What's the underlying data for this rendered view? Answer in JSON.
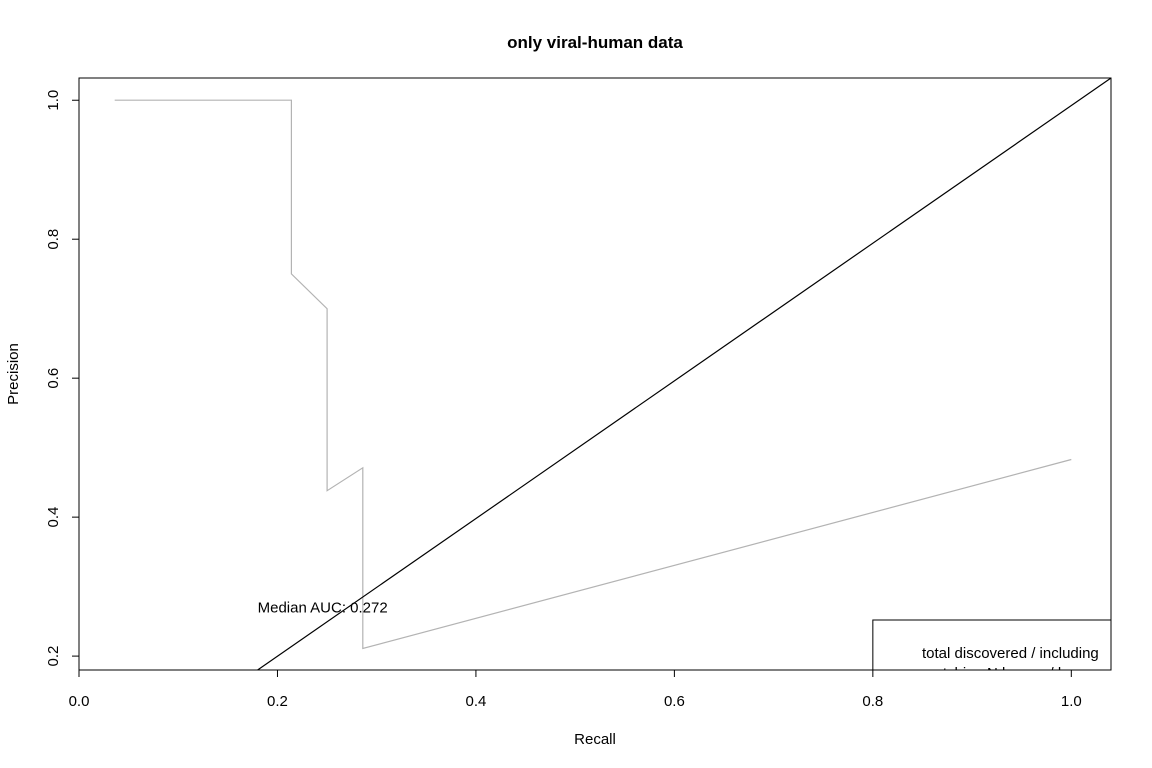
{
  "chart_data": {
    "type": "line",
    "title": "only viral-human data",
    "xlabel": "Recall",
    "ylabel": "Precision",
    "xlim": [
      0.0,
      1.04
    ],
    "ylim": [
      0.18,
      1.032
    ],
    "x_ticks": [
      "0.0",
      "0.2",
      "0.4",
      "0.6",
      "0.8",
      "1.0"
    ],
    "y_ticks": [
      "0.2",
      "0.4",
      "0.6",
      "0.8",
      "1.0"
    ],
    "grid": false,
    "series": [
      {
        "color": "#b3b3b3",
        "points": [
          [
            0.036,
            1.0
          ],
          [
            0.214,
            1.0
          ],
          [
            0.214,
            0.75
          ],
          [
            0.25,
            0.7
          ],
          [
            0.25,
            0.438
          ],
          [
            0.286,
            0.471
          ],
          [
            0.286,
            0.211
          ],
          [
            1.0,
            0.483
          ]
        ]
      },
      {
        "color": "#000000",
        "points": [
          [
            0.18,
            0.18
          ],
          [
            1.04,
            1.032
          ]
        ]
      }
    ],
    "annotations": [
      {
        "text": "Median AUC: 0.272",
        "x": 0.18,
        "y": 0.27
      }
    ],
    "legend": {
      "position": "bottom-right",
      "lines": [
        "total discovered / including",
        "matching N known / known"
      ]
    }
  }
}
